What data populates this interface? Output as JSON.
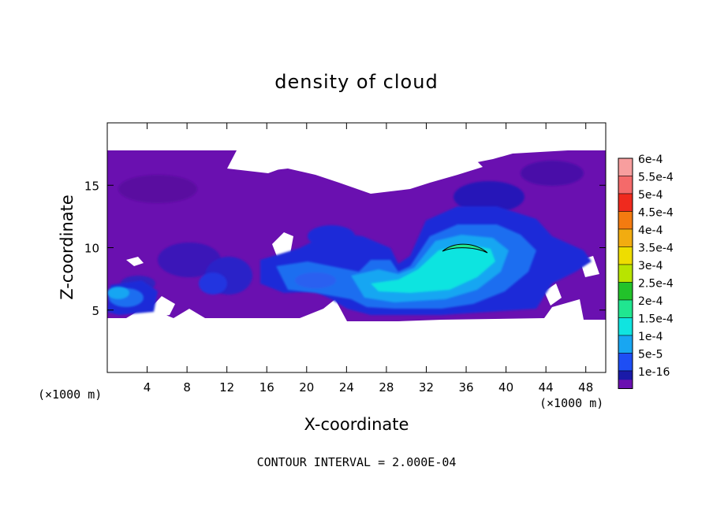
{
  "chart_data": {
    "type": "heatmap",
    "title": "density of cloud",
    "xlabel": "X-coordinate",
    "ylabel": "Z-coordinate",
    "x_unit_label": "(×1000 m)",
    "footer": "CONTOUR INTERVAL = 2.000E-04",
    "xlim": [
      0,
      50
    ],
    "ylim": [
      0,
      20
    ],
    "x_ticks": [
      {
        "value": 4,
        "label": "4"
      },
      {
        "value": 8,
        "label": "8"
      },
      {
        "value": 12,
        "label": "12"
      },
      {
        "value": 16,
        "label": "16"
      },
      {
        "value": 20,
        "label": "20"
      },
      {
        "value": 24,
        "label": "24"
      },
      {
        "value": 28,
        "label": "28"
      },
      {
        "value": 32,
        "label": "32"
      },
      {
        "value": 36,
        "label": "36"
      },
      {
        "value": 40,
        "label": "40"
      },
      {
        "value": 44,
        "label": "44"
      },
      {
        "value": 48,
        "label": "48"
      }
    ],
    "y_ticks": [
      {
        "value": 5,
        "label": "5"
      },
      {
        "value": 10,
        "label": "10"
      },
      {
        "value": 15,
        "label": "15"
      }
    ],
    "legend": [
      {
        "label": "6e-4",
        "color": "#f79e9e"
      },
      {
        "label": "5.5e-4",
        "color": "#f46a6a"
      },
      {
        "label": "5e-4",
        "color": "#ef2a1e"
      },
      {
        "label": "4.5e-4",
        "color": "#f47b10"
      },
      {
        "label": "4e-4",
        "color": "#f2ac10"
      },
      {
        "label": "3.5e-4",
        "color": "#eedd00"
      },
      {
        "label": "3e-4",
        "color": "#b8e400"
      },
      {
        "label": "2.5e-4",
        "color": "#22c22a"
      },
      {
        "label": "2e-4",
        "color": "#20e690"
      },
      {
        "label": "1.5e-4",
        "color": "#10e4e0"
      },
      {
        "label": "1e-4",
        "color": "#18a6f2"
      },
      {
        "label": "5e-5",
        "color": "#1e4ef4"
      },
      {
        "label": "1e-16",
        "color": "#1a1aa8"
      }
    ],
    "bottom_fill_color": "#6a10b0",
    "cloud_regions": [
      {
        "level": "1e-16",
        "x": [
          0,
          50
        ],
        "z": [
          4.5,
          17.8
        ]
      },
      {
        "level": "5e-5",
        "x": [
          16,
          26
        ],
        "z": [
          6.5,
          9.5
        ]
      },
      {
        "level": "5e-5",
        "x": [
          27,
          47
        ],
        "z": [
          5.5,
          13.5
        ]
      },
      {
        "level": "1e-4",
        "x": [
          24,
          44
        ],
        "z": [
          6,
          12
        ]
      },
      {
        "level": "1.5e-4",
        "x": [
          26,
          38
        ],
        "z": [
          6.5,
          10.5
        ]
      },
      {
        "level": "1.5e-4",
        "x": [
          0,
          3
        ],
        "z": [
          5,
          7
        ]
      },
      {
        "level": "2e-4",
        "x": [
          33.5,
          37.8
        ],
        "z": [
          9.5,
          10
        ]
      }
    ]
  }
}
